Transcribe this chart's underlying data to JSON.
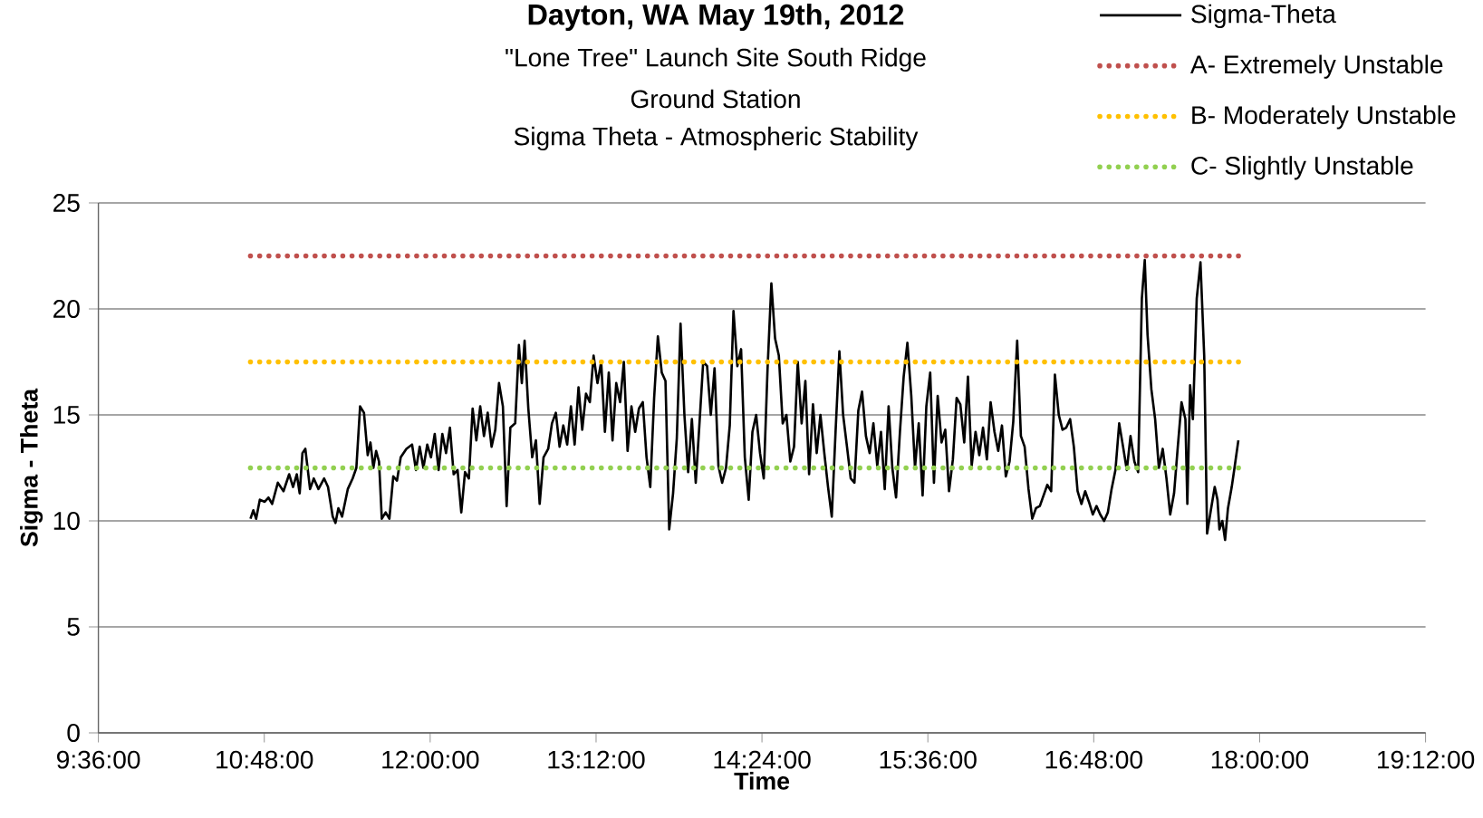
{
  "chart_data": {
    "type": "line",
    "title": "Dayton, WA May 19th, 2012",
    "subtitle": "\"Lone Tree\" Launch Site South Ridge",
    "annotations": [
      "Ground Station",
      "Sigma Theta - Atmospheric Stability"
    ],
    "xlabel": "Time",
    "ylabel": "Sigma - Theta",
    "xlim": [
      9.6,
      19.2
    ],
    "xticks": [
      {
        "value": 9.6,
        "label": "9:36:00"
      },
      {
        "value": 10.8,
        "label": "10:48:00"
      },
      {
        "value": 12,
        "label": "12:00:00"
      },
      {
        "value": 13.2,
        "label": "13:12:00"
      },
      {
        "value": 14.4,
        "label": "14:24:00"
      },
      {
        "value": 15.6,
        "label": "15:36:00"
      },
      {
        "value": 16.8,
        "label": "16:48:00"
      },
      {
        "value": 18,
        "label": "18:00:00"
      },
      {
        "value": 19.2,
        "label": "19:12:00"
      }
    ],
    "ylim": [
      0,
      25
    ],
    "yticks": [
      0,
      5,
      10,
      15,
      20,
      25
    ],
    "grid": "y",
    "legend": "top right",
    "series": [
      {
        "name": "Sigma-Theta",
        "color": "#000000",
        "line_style": "solid",
        "x": [
          10.7,
          10.721,
          10.741,
          10.768,
          10.803,
          10.83,
          10.857,
          10.898,
          10.939,
          10.98,
          11.008,
          11.035,
          11.056,
          11.076,
          11.097,
          11.131,
          11.158,
          11.192,
          11.233,
          11.261,
          11.295,
          11.315,
          11.336,
          11.363,
          11.404,
          11.439,
          11.466,
          11.493,
          11.521,
          11.548,
          11.568,
          11.589,
          11.609,
          11.63,
          11.65,
          11.678,
          11.705,
          11.733,
          11.76,
          11.787,
          11.828,
          11.869,
          11.897,
          11.924,
          11.951,
          11.979,
          12.006,
          12.033,
          12.061,
          12.088,
          12.115,
          12.143,
          12.17,
          12.198,
          12.225,
          12.252,
          12.28,
          12.307,
          12.334,
          12.362,
          12.389,
          12.416,
          12.444,
          12.471,
          12.498,
          12.526,
          12.553,
          12.58,
          12.615,
          12.642,
          12.663,
          12.683,
          12.71,
          12.738,
          12.765,
          12.792,
          12.82,
          12.854,
          12.881,
          12.909,
          12.936,
          12.963,
          12.991,
          13.018,
          13.045,
          13.073,
          13.1,
          13.127,
          13.155,
          13.182,
          13.21,
          13.237,
          13.264,
          13.292,
          13.319,
          13.346,
          13.374,
          13.401,
          13.428,
          13.456,
          13.483,
          13.51,
          13.538,
          13.565,
          13.592,
          13.62,
          13.647,
          13.675,
          13.702,
          13.729,
          13.757,
          13.784,
          13.811,
          13.839,
          13.866,
          13.893,
          13.921,
          13.948,
          13.975,
          14.003,
          14.03,
          14.057,
          14.085,
          14.112,
          14.14,
          14.167,
          14.194,
          14.222,
          14.249,
          14.276,
          14.304,
          14.331,
          14.358,
          14.386,
          14.413,
          14.44,
          14.468,
          14.495,
          14.522,
          14.55,
          14.577,
          14.605,
          14.632,
          14.659,
          14.687,
          14.714,
          14.741,
          14.769,
          14.796,
          14.823,
          14.851,
          14.878,
          14.905,
          14.933,
          14.96,
          14.987,
          15.015,
          15.042,
          15.069,
          15.097,
          15.124,
          15.152,
          15.179,
          15.206,
          15.234,
          15.261,
          15.288,
          15.316,
          15.343,
          15.37,
          15.398,
          15.425,
          15.452,
          15.48,
          15.507,
          15.534,
          15.562,
          15.589,
          15.617,
          15.644,
          15.671,
          15.699,
          15.726,
          15.753,
          15.781,
          15.808,
          15.835,
          15.863,
          15.89,
          15.917,
          15.945,
          15.972,
          15.999,
          16.027,
          16.054,
          16.082,
          16.109,
          16.136,
          16.164,
          16.191,
          16.218,
          16.246,
          16.273,
          16.3,
          16.328,
          16.355,
          16.382,
          16.41,
          16.437,
          16.464,
          16.492,
          16.519,
          16.547,
          16.574,
          16.601,
          16.629,
          16.656,
          16.683,
          16.711,
          16.738,
          16.765,
          16.793,
          16.82,
          16.847,
          16.875,
          16.902,
          16.929,
          16.957,
          16.984,
          17.012,
          17.039,
          17.066,
          17.094,
          17.121,
          17.148,
          17.169,
          17.189,
          17.217,
          17.244,
          17.271,
          17.299,
          17.326,
          17.353,
          17.381,
          17.408,
          17.435,
          17.463,
          17.477,
          17.497,
          17.517,
          17.545,
          17.572,
          17.599,
          17.62,
          17.647,
          17.675,
          17.695,
          17.709,
          17.73,
          17.75,
          17.771,
          17.798,
          17.818,
          17.846
        ],
        "values": [
          10.1,
          10.5,
          10.1,
          11,
          10.9,
          11.1,
          10.8,
          11.8,
          11.4,
          12.2,
          11.6,
          12.2,
          11.3,
          13.2,
          13.4,
          11.5,
          12,
          11.5,
          12,
          11.6,
          10.2,
          9.9,
          10.6,
          10.2,
          11.5,
          12,
          12.5,
          15.4,
          15.1,
          13.1,
          13.7,
          12.5,
          13.3,
          12.8,
          10.1,
          10.4,
          10.1,
          12.1,
          11.9,
          13,
          13.4,
          13.6,
          12.4,
          13.5,
          12.5,
          13.6,
          13,
          14.1,
          12.4,
          14.1,
          13.2,
          14.4,
          12.2,
          12.4,
          10.4,
          12.3,
          12,
          15.3,
          13.8,
          15.4,
          14,
          15.1,
          13.5,
          14.3,
          16.5,
          15.4,
          10.7,
          14.4,
          14.6,
          18.3,
          16.5,
          18.5,
          15.3,
          13,
          13.8,
          10.8,
          13,
          13.4,
          14.6,
          15.1,
          13.5,
          14.5,
          13.6,
          15.4,
          13.6,
          16.3,
          14.3,
          16,
          15.6,
          17.8,
          16.5,
          17.5,
          14.2,
          17,
          13.8,
          16.5,
          15.6,
          17.5,
          13.3,
          15.4,
          14.2,
          15.3,
          15.6,
          13,
          11.6,
          15.8,
          18.7,
          17,
          16.6,
          9.6,
          11.3,
          13.9,
          19.3,
          15,
          12.3,
          14.8,
          11.8,
          14.6,
          17.5,
          17.3,
          15,
          17.2,
          12.6,
          11.8,
          12.5,
          14.5,
          19.9,
          17.3,
          18.1,
          13,
          11,
          14.2,
          15,
          13.2,
          12,
          17.1,
          21.2,
          18.6,
          17.8,
          14.6,
          15,
          12.8,
          13.5,
          17.5,
          14.6,
          16.6,
          12.2,
          15.5,
          13.2,
          15,
          13.2,
          11.6,
          10.2,
          14.3,
          18,
          15,
          13.5,
          12,
          11.8,
          15.2,
          16.1,
          14,
          13.2,
          14.6,
          12.6,
          14.2,
          11.5,
          15.4,
          12.5,
          11.1,
          14.2,
          16.8,
          18.4,
          15.9,
          12.5,
          14.6,
          11.2,
          15.4,
          17,
          11.8,
          15.9,
          13.7,
          14.3,
          11.4,
          12.9,
          15.8,
          15.5,
          13.7,
          16.8,
          12.6,
          14.2,
          13.1,
          14.4,
          12.9,
          15.6,
          14.2,
          13.3,
          14.5,
          12.1,
          12.8,
          14.7,
          18.5,
          14,
          13.5,
          11.5,
          10.1,
          10.6,
          10.7,
          11.2,
          11.7,
          11.4,
          16.9,
          15,
          14.3,
          14.4,
          14.8,
          13.5,
          11.4,
          10.8,
          11.4,
          10.9,
          10.3,
          10.7,
          10.3,
          10,
          10.4,
          11.5,
          12.4,
          14.6,
          13.5,
          12.4,
          14,
          12.8,
          12.3,
          20.5,
          22.3,
          18.8,
          16.2,
          14.8,
          12.5,
          13.4,
          12,
          10.3,
          11.3,
          13.5,
          15.6,
          14.8,
          10.8,
          16.4,
          14.8,
          20.5,
          22.2,
          17.8,
          9.4,
          10.5,
          11.6,
          11,
          9.6,
          10,
          9.1,
          10.6,
          11.6,
          12.5,
          13.8
        ]
      },
      {
        "name": "A- Extremely Unstable",
        "color": "#c0504d",
        "line_style": "dotted",
        "x": [
          10.7,
          17.85
        ],
        "values": [
          22.5,
          22.5
        ]
      },
      {
        "name": "B- Moderately Unstable",
        "color": "#ffc000",
        "line_style": "dotted",
        "x": [
          10.7,
          17.85
        ],
        "values": [
          17.5,
          17.5
        ]
      },
      {
        "name": "C- Slightly Unstable",
        "color": "#92d050",
        "line_style": "dotted",
        "x": [
          10.7,
          17.85
        ],
        "values": [
          12.5,
          12.5
        ]
      }
    ]
  }
}
